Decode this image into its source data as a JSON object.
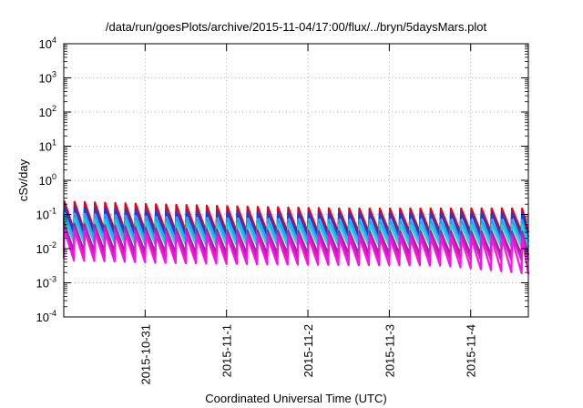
{
  "chart_data": {
    "type": "line",
    "title": "/data/run/goesPlots/archive/2015-11-04/17:00/flux/../bryn/5daysMars.plot",
    "xlabel": "Coordinated Universal Time (UTC)",
    "ylabel": "cSv/day",
    "y_scale": "log",
    "ylim": [
      0.0001,
      10000
    ],
    "y_ticks": [
      {
        "value": 0.0001,
        "base": "10",
        "exp": "-4"
      },
      {
        "value": 0.001,
        "base": "10",
        "exp": "-3"
      },
      {
        "value": 0.01,
        "base": "10",
        "exp": "-2"
      },
      {
        "value": 0.1,
        "base": "10",
        "exp": "-1"
      },
      {
        "value": 1,
        "base": "10",
        "exp": "0"
      },
      {
        "value": 10,
        "base": "10",
        "exp": "1"
      },
      {
        "value": 100,
        "base": "10",
        "exp": "2"
      },
      {
        "value": 1000,
        "base": "10",
        "exp": "3"
      },
      {
        "value": 10000,
        "base": "10",
        "exp": "4"
      }
    ],
    "xlim": [
      "2015-10-30 00:00",
      "2015-11-04 17:00"
    ],
    "x_ticks": [
      {
        "value": "2015-10-31",
        "label": "2015-10-31"
      },
      {
        "value": "2015-11-01",
        "label": "2015-11-1"
      },
      {
        "value": "2015-11-02",
        "label": "2015-11-2"
      },
      {
        "value": "2015-11-03",
        "label": "2015-11-3"
      },
      {
        "value": "2015-11-04",
        "label": "2015-11-4"
      }
    ],
    "grid": true,
    "pulse_period_hours": 3.0,
    "series": [
      {
        "color": "#e8001c",
        "peak": [
          0.24,
          0.2,
          0.17,
          0.15,
          0.15,
          0.15
        ],
        "trough": [
          0.035,
          0.032,
          0.03,
          0.03,
          0.03,
          0.03
        ]
      },
      {
        "color": "#1a3dd6",
        "peak": [
          0.17,
          0.13,
          0.115,
          0.11,
          0.11,
          0.11
        ],
        "trough": [
          0.028,
          0.025,
          0.024,
          0.023,
          0.023,
          0.022
        ]
      },
      {
        "color": "#2a9df4",
        "peak": [
          0.11,
          0.085,
          0.075,
          0.07,
          0.07,
          0.07
        ],
        "trough": [
          0.02,
          0.018,
          0.017,
          0.017,
          0.017,
          0.016
        ]
      },
      {
        "color": "#17d6d2",
        "peak": [
          0.08,
          0.06,
          0.055,
          0.05,
          0.05,
          0.05
        ],
        "trough": [
          0.015,
          0.013,
          0.012,
          0.012,
          0.012,
          0.011
        ]
      },
      {
        "color": "#8f2aa8",
        "peak": [
          0.055,
          0.04,
          0.035,
          0.033,
          0.033,
          0.032
        ],
        "trough": [
          0.0085,
          0.0075,
          0.007,
          0.007,
          0.0068,
          0.0065
        ]
      },
      {
        "color": "#cc1fb0",
        "peak": [
          0.045,
          0.032,
          0.028,
          0.027,
          0.027,
          0.026
        ],
        "trough": [
          0.006,
          0.0052,
          0.005,
          0.005,
          0.0048,
          0.0045
        ]
      },
      {
        "color": "#ff10e6",
        "peak": [
          0.035,
          0.025,
          0.022,
          0.021,
          0.021,
          0.02
        ],
        "trough": [
          0.0045,
          0.0038,
          0.0035,
          0.0033,
          0.0032,
          0.0018
        ]
      }
    ]
  }
}
